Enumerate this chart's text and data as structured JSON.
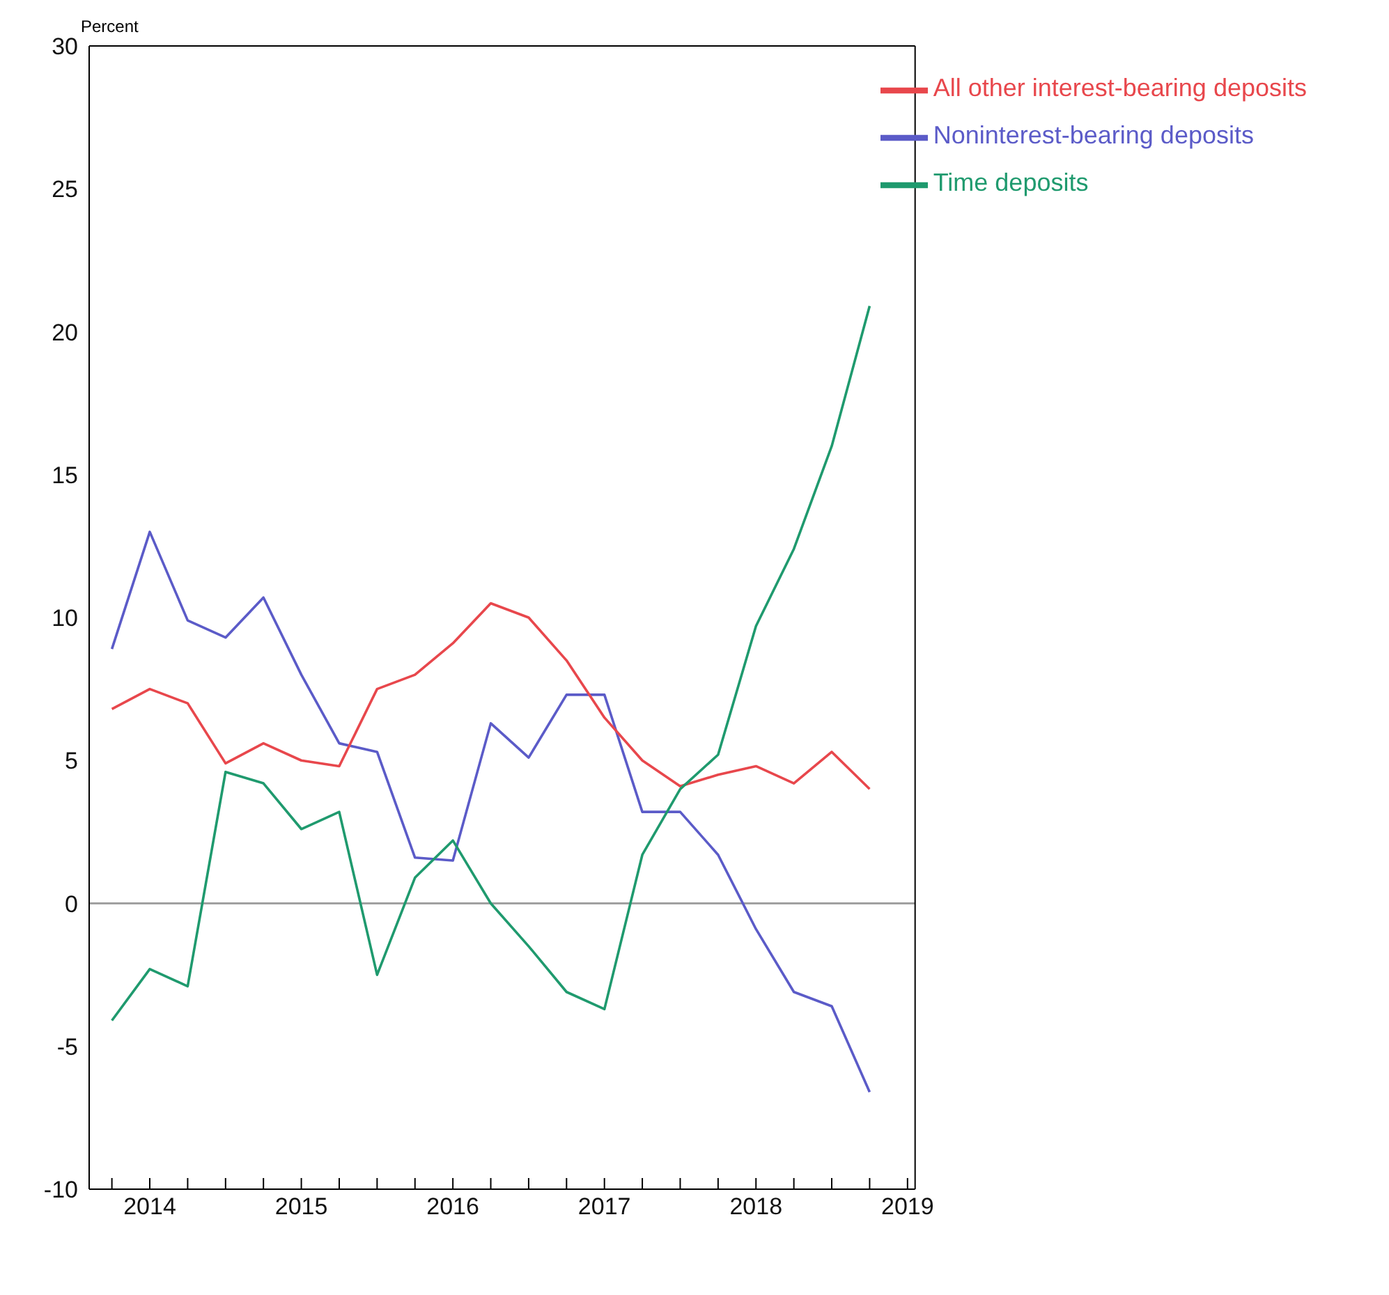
{
  "chart_data": {
    "type": "line",
    "ylabel": "Percent",
    "x": [
      2013.75,
      2014,
      2014.25,
      2014.5,
      2014.75,
      2015,
      2015.25,
      2015.5,
      2015.75,
      2016,
      2016.25,
      2016.5,
      2016.75,
      2017,
      2017.25,
      2017.5,
      2017.75,
      2018,
      2018.25,
      2018.5,
      2018.75
    ],
    "series": [
      {
        "name": "Noninterest-bearing deposits",
        "color": "#5b5bc8",
        "values": [
          8.9,
          13.0,
          9.9,
          9.3,
          10.7,
          8.0,
          5.6,
          5.3,
          1.6,
          1.5,
          6.3,
          5.1,
          7.3,
          7.3,
          3.2,
          3.2,
          1.7,
          -0.9,
          -3.1,
          -3.6,
          -6.6
        ]
      },
      {
        "name": "All other interest-bearing deposits",
        "color": "#e8474c",
        "values": [
          6.8,
          7.5,
          7.0,
          4.9,
          5.6,
          5.0,
          4.8,
          7.5,
          8.0,
          9.1,
          10.5,
          10.0,
          8.5,
          6.5,
          5.0,
          4.1,
          4.5,
          4.8,
          4.2,
          5.3,
          4.0
        ]
      },
      {
        "name": "Time deposits",
        "color": "#1f9a6e",
        "values": [
          -4.1,
          -2.3,
          -2.9,
          4.6,
          4.2,
          2.6,
          3.2,
          -2.5,
          0.9,
          2.2,
          0.0,
          -1.5,
          -3.1,
          -3.7,
          1.7,
          4.0,
          5.2,
          9.7,
          12.4,
          16.0,
          20.9
        ]
      }
    ],
    "xlim": [
      2013.6,
      2019.05
    ],
    "xticks": [
      {
        "value": 2013.75,
        "label": null
      },
      2014,
      {
        "value": 2014.25,
        "label": null
      },
      {
        "value": 2014.5,
        "label": null
      },
      {
        "value": 2014.75,
        "label": null
      },
      2015,
      {
        "value": 2015.25,
        "label": null
      },
      {
        "value": 2015.5,
        "label": null
      },
      {
        "value": 2015.75,
        "label": null
      },
      2016,
      {
        "value": 2016.25,
        "label": null
      },
      {
        "value": 2016.5,
        "label": null
      },
      {
        "value": 2016.75,
        "label": null
      },
      2017,
      {
        "value": 2017.25,
        "label": null
      },
      {
        "value": 2017.5,
        "label": null
      },
      {
        "value": 2017.75,
        "label": null
      },
      2018,
      {
        "value": 2018.25,
        "label": null
      },
      {
        "value": 2018.5,
        "label": null
      },
      {
        "value": 2018.75,
        "label": null
      },
      2019
    ],
    "ylim": [
      -10,
      30
    ],
    "yticks": [
      -10,
      -5,
      0,
      5,
      10,
      15,
      20,
      25,
      30
    ],
    "ref_lines": [
      {
        "axis": "y",
        "value": 0,
        "color": "#a0a0a0"
      }
    ],
    "legend": "top right",
    "grid": false,
    "marker": "none",
    "line_style": "solid"
  }
}
